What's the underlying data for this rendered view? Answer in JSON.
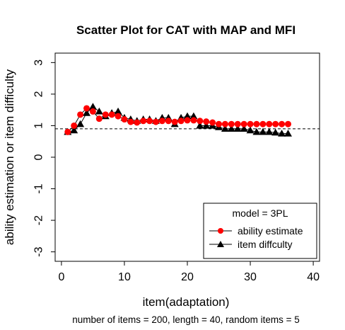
{
  "chart_data": {
    "type": "scatter",
    "title": "Scatter Plot for CAT with MAP and MFI",
    "xlabel": "item(adaptation)",
    "ylabel": "ability estimation or item difficulty",
    "subtitle": "number of items = 200, length = 40, random items = 5",
    "xlim": [
      -1,
      41
    ],
    "ylim": [
      -3.3,
      3.3
    ],
    "xticks": [
      0,
      10,
      20,
      30,
      40
    ],
    "yticks": [
      -3,
      -2,
      -1,
      0,
      1,
      2,
      3
    ],
    "xtick_labels": [
      "0",
      "10",
      "20",
      "30",
      "40"
    ],
    "ytick_labels": [
      "-3",
      "-2",
      "-1",
      "0",
      "1",
      "2",
      "3"
    ],
    "grid": false,
    "reference_line": {
      "y": 0.9,
      "style": "dashed"
    },
    "legend": {
      "position": "bottom-right",
      "title": "model = 3PL",
      "entries": [
        "ability estimate",
        "item diffculty"
      ]
    },
    "x": [
      1,
      2,
      3,
      4,
      5,
      6,
      7,
      8,
      9,
      10,
      11,
      12,
      13,
      14,
      15,
      16,
      17,
      18,
      19,
      20,
      21,
      22,
      23,
      24,
      25,
      26,
      27,
      28,
      29,
      30,
      31,
      32,
      33,
      34,
      35,
      36
    ],
    "series": [
      {
        "name": "ability estimate",
        "color": "#ff0000",
        "marker": "circle",
        "line": true,
        "values": [
          0.8,
          1.0,
          1.35,
          1.55,
          1.45,
          1.22,
          1.35,
          1.35,
          1.3,
          1.2,
          1.12,
          1.1,
          1.15,
          1.15,
          1.12,
          1.15,
          1.15,
          1.12,
          1.15,
          1.17,
          1.17,
          1.15,
          1.13,
          1.1,
          1.05,
          1.05,
          1.05,
          1.05,
          1.05,
          1.05,
          1.05,
          1.05,
          1.05,
          1.05,
          1.05,
          1.05
        ]
      },
      {
        "name": "item diffculty",
        "color": "#000000",
        "marker": "triangle",
        "line": true,
        "values": [
          0.8,
          0.85,
          1.05,
          1.4,
          1.6,
          1.45,
          1.3,
          1.4,
          1.45,
          1.25,
          1.2,
          1.15,
          1.2,
          1.2,
          1.15,
          1.25,
          1.25,
          1.05,
          1.25,
          1.3,
          1.3,
          1.0,
          1.0,
          1.0,
          0.95,
          0.9,
          0.9,
          0.9,
          0.9,
          0.85,
          0.8,
          0.8,
          0.8,
          0.78,
          0.75,
          0.75
        ]
      }
    ]
  }
}
